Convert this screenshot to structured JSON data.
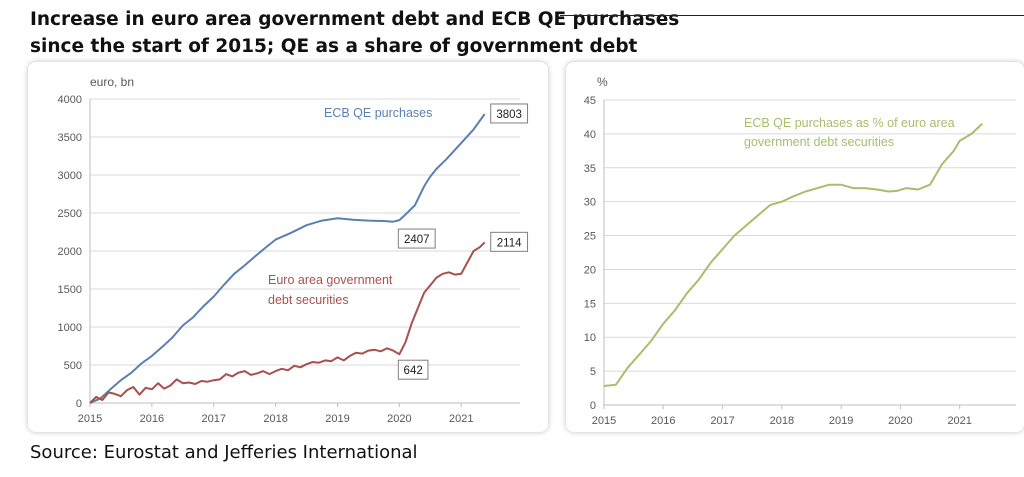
{
  "title": {
    "line1": "Increase in euro area government debt and ECB QE purchases",
    "line2": "since the start of 2015; QE as a share of government debt"
  },
  "source": "Source: Eurostat and Jefferies International",
  "colors": {
    "qe": "#5b7fb1",
    "debt": "#a8514c",
    "share": "#a7be6a",
    "axis": "#bfbfbf",
    "text": "#595959"
  },
  "chart_data": [
    {
      "type": "line",
      "ylabel": "euro, bn",
      "ylim": [
        0,
        4000
      ],
      "yticks": [
        0,
        500,
        1000,
        1500,
        2000,
        2500,
        3000,
        3500,
        4000
      ],
      "xlim": [
        2015,
        2021.95
      ],
      "xticks": [
        2015,
        2016,
        2017,
        2018,
        2019,
        2020,
        2021
      ],
      "series": [
        {
          "name": "ECB QE purchases",
          "x": [
            2015.0,
            2015.17,
            2015.33,
            2015.5,
            2015.67,
            2015.83,
            2016.0,
            2016.17,
            2016.33,
            2016.5,
            2016.67,
            2016.83,
            2017.0,
            2017.17,
            2017.33,
            2017.5,
            2017.67,
            2017.83,
            2018.0,
            2018.25,
            2018.5,
            2018.75,
            2019.0,
            2019.25,
            2019.5,
            2019.75,
            2019.9,
            2020.0,
            2020.1,
            2020.25,
            2020.4,
            2020.5,
            2020.6,
            2020.75,
            2021.0,
            2021.2,
            2021.38
          ],
          "values": [
            0,
            60,
            180,
            300,
            400,
            520,
            620,
            740,
            860,
            1020,
            1130,
            1270,
            1400,
            1560,
            1700,
            1810,
            1930,
            2040,
            2150,
            2240,
            2340,
            2400,
            2430,
            2410,
            2400,
            2395,
            2385,
            2407,
            2480,
            2600,
            2850,
            2980,
            3080,
            3200,
            3420,
            3600,
            3803
          ]
        },
        {
          "name": "Euro area government debt securities",
          "x": [
            2015.0,
            2015.1,
            2015.2,
            2015.3,
            2015.4,
            2015.5,
            2015.6,
            2015.7,
            2015.8,
            2015.9,
            2016.0,
            2016.1,
            2016.2,
            2016.3,
            2016.4,
            2016.5,
            2016.6,
            2016.7,
            2016.8,
            2016.9,
            2017.0,
            2017.1,
            2017.2,
            2017.3,
            2017.4,
            2017.5,
            2017.6,
            2017.7,
            2017.8,
            2017.9,
            2018.0,
            2018.1,
            2018.2,
            2018.3,
            2018.4,
            2018.5,
            2018.6,
            2018.7,
            2018.8,
            2018.9,
            2019.0,
            2019.1,
            2019.2,
            2019.3,
            2019.4,
            2019.5,
            2019.6,
            2019.7,
            2019.8,
            2019.9,
            2020.0,
            2020.1,
            2020.2,
            2020.3,
            2020.4,
            2020.5,
            2020.6,
            2020.7,
            2020.8,
            2020.9,
            2021.0,
            2021.1,
            2021.2,
            2021.3,
            2021.38
          ],
          "values": [
            0,
            80,
            40,
            140,
            120,
            90,
            170,
            210,
            110,
            200,
            180,
            260,
            190,
            230,
            310,
            260,
            270,
            250,
            290,
            280,
            300,
            310,
            380,
            350,
            400,
            420,
            370,
            390,
            420,
            380,
            420,
            450,
            430,
            490,
            470,
            510,
            540,
            530,
            560,
            550,
            600,
            560,
            620,
            660,
            650,
            690,
            700,
            680,
            720,
            690,
            642,
            800,
            1050,
            1250,
            1450,
            1550,
            1650,
            1700,
            1720,
            1690,
            1700,
            1850,
            2000,
            2050,
            2114
          ]
        }
      ],
      "annotations": [
        {
          "text": "ECB QE purchases",
          "series": 0
        },
        {
          "text": "Euro area government",
          "series": 1
        },
        {
          "text": "debt securities",
          "series": 1
        }
      ],
      "callouts": [
        {
          "label": "3803",
          "x": 2021.38,
          "y": 3803
        },
        {
          "label": "2407",
          "x": 2020.0,
          "y": 2407
        },
        {
          "label": "2114",
          "x": 2021.38,
          "y": 2114
        },
        {
          "label": "642",
          "x": 2020.0,
          "y": 642
        }
      ]
    },
    {
      "type": "line",
      "ylabel": "%",
      "ylim": [
        0,
        45
      ],
      "yticks": [
        0,
        5,
        10,
        15,
        20,
        25,
        30,
        35,
        40,
        45
      ],
      "xlim": [
        2015,
        2021.95
      ],
      "xticks": [
        2015,
        2016,
        2017,
        2018,
        2019,
        2020,
        2021
      ],
      "series": [
        {
          "name": "ECB QE purchases as % of euro area government debt securities",
          "x": [
            2015.0,
            2015.2,
            2015.4,
            2015.6,
            2015.8,
            2016.0,
            2016.2,
            2016.4,
            2016.6,
            2016.8,
            2017.0,
            2017.2,
            2017.4,
            2017.6,
            2017.8,
            2018.0,
            2018.2,
            2018.4,
            2018.6,
            2018.8,
            2019.0,
            2019.2,
            2019.4,
            2019.6,
            2019.8,
            2019.95,
            2020.1,
            2020.3,
            2020.5,
            2020.7,
            2020.9,
            2021.0,
            2021.2,
            2021.38
          ],
          "values": [
            2.8,
            3.0,
            5.5,
            7.5,
            9.5,
            12.0,
            14.0,
            16.5,
            18.5,
            21.0,
            23.0,
            25.0,
            26.5,
            28.0,
            29.5,
            30.0,
            30.8,
            31.5,
            32.0,
            32.5,
            32.5,
            32.0,
            32.0,
            31.8,
            31.5,
            31.6,
            32.0,
            31.8,
            32.5,
            35.5,
            37.5,
            39.0,
            40.0,
            41.5
          ]
        }
      ],
      "annotations": [
        {
          "text": "ECB QE purchases as % of euro area",
          "series": 0
        },
        {
          "text": "government debt securities",
          "series": 0
        }
      ]
    }
  ]
}
